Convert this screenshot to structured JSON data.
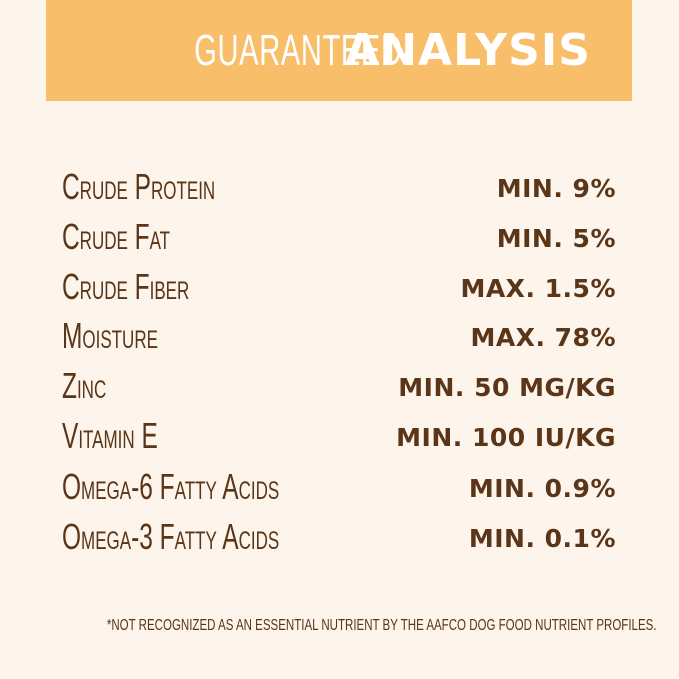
{
  "title": {
    "light": "GUARANTEED",
    "bold": "ANALYSIS"
  },
  "rows": [
    {
      "label": "Crude Protein",
      "value": "MIN. 9%"
    },
    {
      "label": "Crude Fat",
      "value": "MIN. 5%"
    },
    {
      "label": "Crude Fiber",
      "value": "MAX. 1.5%"
    },
    {
      "label": "Moisture",
      "value": "MAX. 78%"
    },
    {
      "label": "Zinc",
      "value": "MIN. 50 MG/KG"
    },
    {
      "label": "Vitamin E",
      "value": "MIN. 100 IU/KG"
    },
    {
      "label": "Omega-6 Fatty Acids",
      "value": "MIN. 0.9%"
    },
    {
      "label": "Omega-3 Fatty Acids",
      "value": "MIN. 0.1%"
    }
  ],
  "footnote": "*NOT RECOGNIZED AS AN ESSENTIAL NUTRIENT BY THE AAFCO DOG FOOD NUTRIENT PROFILES.",
  "colors": {
    "banner": "#F8BE6A",
    "background": "#FDF4EB",
    "text": "#5A3518"
  }
}
